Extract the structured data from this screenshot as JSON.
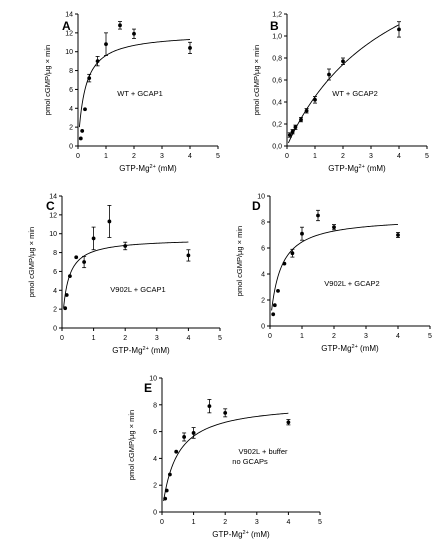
{
  "figure": {
    "panels": [
      "A",
      "B",
      "C",
      "D",
      "E"
    ]
  },
  "chart_data": [
    {
      "panel_label": "A",
      "type": "scatter",
      "annotation": "WT + GCAP1",
      "xlabel": {
        "main": "GTP-Mg",
        "sup": "2+",
        "unit": " (mM)"
      },
      "ylabel": "pmol cGMP/µg × min",
      "xlim": [
        0,
        5
      ],
      "ylim": [
        0,
        14
      ],
      "xticks": [
        "0",
        "1",
        "2",
        "3",
        "4",
        "5"
      ],
      "yticks": [
        "0",
        "2",
        "4",
        "6",
        "8",
        "10",
        "12",
        "14"
      ],
      "ytick_values": [
        0,
        2,
        4,
        6,
        8,
        10,
        12,
        14
      ],
      "grid": false,
      "points": [
        {
          "x": 0.1,
          "y": 0.8,
          "err": 0
        },
        {
          "x": 0.15,
          "y": 1.6,
          "err": 0
        },
        {
          "x": 0.25,
          "y": 3.9,
          "err": 0
        },
        {
          "x": 0.4,
          "y": 7.2,
          "err": 0.4
        },
        {
          "x": 0.7,
          "y": 9.0,
          "err": 0.5
        },
        {
          "x": 1.0,
          "y": 10.8,
          "err": 1.2
        },
        {
          "x": 1.5,
          "y": 12.8,
          "err": 0.4
        },
        {
          "x": 2.0,
          "y": 11.9,
          "err": 0.5
        },
        {
          "x": 4.0,
          "y": 10.4,
          "err": 0.6
        }
      ],
      "fit": {
        "model": "Michaelis-Menten",
        "vmax": 12.0,
        "km": 0.25,
        "x0": 0.05
      }
    },
    {
      "panel_label": "B",
      "type": "scatter",
      "annotation": "WT + GCAP2",
      "xlabel": {
        "main": "GTP-Mg",
        "sup": "2+",
        "unit": " (mM)"
      },
      "ylabel": "pmol cGMP/µg × min",
      "xlim": [
        0,
        5
      ],
      "ylim": [
        0,
        1.2
      ],
      "xticks": [
        "0",
        "1",
        "2",
        "3",
        "4",
        "5"
      ],
      "yticks": [
        "0,0",
        "0,2",
        "0,4",
        "0,6",
        "0,8",
        "1,0",
        "1,2"
      ],
      "ytick_values": [
        0,
        0.2,
        0.4,
        0.6,
        0.8,
        1.0,
        1.2
      ],
      "grid": false,
      "points": [
        {
          "x": 0.1,
          "y": 0.1,
          "err": 0.02
        },
        {
          "x": 0.2,
          "y": 0.13,
          "err": 0.02
        },
        {
          "x": 0.3,
          "y": 0.17,
          "err": 0.02
        },
        {
          "x": 0.5,
          "y": 0.24,
          "err": 0.02
        },
        {
          "x": 0.7,
          "y": 0.32,
          "err": 0.02
        },
        {
          "x": 1.0,
          "y": 0.42,
          "err": 0.03
        },
        {
          "x": 1.5,
          "y": 0.65,
          "err": 0.05
        },
        {
          "x": 2.0,
          "y": 0.77,
          "err": 0.03
        },
        {
          "x": 4.0,
          "y": 1.06,
          "err": 0.07
        }
      ],
      "fit": {
        "model": "Michaelis-Menten",
        "vmax": 2.15,
        "km": 3.8,
        "x0": 0.05
      }
    },
    {
      "panel_label": "C",
      "type": "scatter",
      "annotation": "V902L + GCAP1",
      "xlabel": {
        "main": "GTP-Mg",
        "sup": "2+",
        "unit": " (mM)"
      },
      "ylabel": "pmol cGMP/µg × min",
      "xlim": [
        0,
        5
      ],
      "ylim": [
        0,
        14
      ],
      "xticks": [
        "0",
        "1",
        "2",
        "3",
        "4",
        "5"
      ],
      "yticks": [
        "0",
        "2",
        "4",
        "6",
        "8",
        "10",
        "12",
        "14"
      ],
      "ytick_values": [
        0,
        2,
        4,
        6,
        8,
        10,
        12,
        14
      ],
      "grid": false,
      "points": [
        {
          "x": 0.1,
          "y": 2.1,
          "err": 0
        },
        {
          "x": 0.15,
          "y": 3.5,
          "err": 0
        },
        {
          "x": 0.25,
          "y": 5.5,
          "err": 0
        },
        {
          "x": 0.45,
          "y": 7.5,
          "err": 0
        },
        {
          "x": 0.7,
          "y": 7.0,
          "err": 0.6
        },
        {
          "x": 1.0,
          "y": 9.5,
          "err": 1.2
        },
        {
          "x": 1.5,
          "y": 11.3,
          "err": 1.7
        },
        {
          "x": 2.0,
          "y": 8.7,
          "err": 0.4
        },
        {
          "x": 4.0,
          "y": 7.7,
          "err": 0.6
        }
      ],
      "fit": {
        "model": "Michaelis-Menten",
        "vmax": 9.5,
        "km": 0.17,
        "x0": 0.05
      }
    },
    {
      "panel_label": "D",
      "type": "scatter",
      "annotation": "V902L + GCAP2",
      "xlabel": {
        "main": "GTP-Mg",
        "sup": "2+",
        "unit": " (mM)"
      },
      "ylabel": "pmol cGMP/µg × min",
      "xlim": [
        0,
        5
      ],
      "ylim": [
        0,
        10
      ],
      "xticks": [
        "0",
        "1",
        "2",
        "3",
        "4",
        "5"
      ],
      "yticks": [
        "0",
        "2",
        "4",
        "6",
        "8",
        "10"
      ],
      "ytick_values": [
        0,
        2,
        4,
        6,
        8,
        10
      ],
      "grid": false,
      "points": [
        {
          "x": 0.1,
          "y": 0.9,
          "err": 0
        },
        {
          "x": 0.15,
          "y": 1.6,
          "err": 0
        },
        {
          "x": 0.25,
          "y": 2.7,
          "err": 0
        },
        {
          "x": 0.45,
          "y": 4.8,
          "err": 0
        },
        {
          "x": 0.7,
          "y": 5.6,
          "err": 0.3
        },
        {
          "x": 1.0,
          "y": 7.1,
          "err": 0.5
        },
        {
          "x": 1.5,
          "y": 8.5,
          "err": 0.4
        },
        {
          "x": 2.0,
          "y": 7.6,
          "err": 0.2
        },
        {
          "x": 4.0,
          "y": 7.0,
          "err": 0.2
        }
      ],
      "fit": {
        "model": "Michaelis-Menten",
        "vmax": 8.4,
        "km": 0.3,
        "x0": 0.05
      }
    },
    {
      "panel_label": "E",
      "type": "scatter",
      "annotation": "V902L + buffer",
      "annotation_line2": "no GCAPs",
      "xlabel": {
        "main": "GTP-Mg",
        "sup": "2+",
        "unit": " (mM)"
      },
      "ylabel": "pmol cGMP/µg × min",
      "xlim": [
        0,
        5
      ],
      "ylim": [
        0,
        10
      ],
      "xticks": [
        "0",
        "1",
        "2",
        "3",
        "4",
        "5"
      ],
      "yticks": [
        "0",
        "2",
        "4",
        "6",
        "8",
        "10"
      ],
      "ytick_values": [
        0,
        2,
        4,
        6,
        8,
        10
      ],
      "grid": false,
      "points": [
        {
          "x": 0.1,
          "y": 1.0,
          "err": 0
        },
        {
          "x": 0.15,
          "y": 1.6,
          "err": 0
        },
        {
          "x": 0.25,
          "y": 2.8,
          "err": 0
        },
        {
          "x": 0.45,
          "y": 4.5,
          "err": 0
        },
        {
          "x": 0.7,
          "y": 5.6,
          "err": 0.3
        },
        {
          "x": 1.0,
          "y": 5.9,
          "err": 0.4
        },
        {
          "x": 1.5,
          "y": 7.9,
          "err": 0.5
        },
        {
          "x": 2.0,
          "y": 7.4,
          "err": 0.3
        },
        {
          "x": 4.0,
          "y": 6.7,
          "err": 0.2
        }
      ],
      "fit": {
        "model": "Michaelis-Menten",
        "vmax": 8.2,
        "km": 0.45,
        "x0": 0.05
      }
    }
  ]
}
